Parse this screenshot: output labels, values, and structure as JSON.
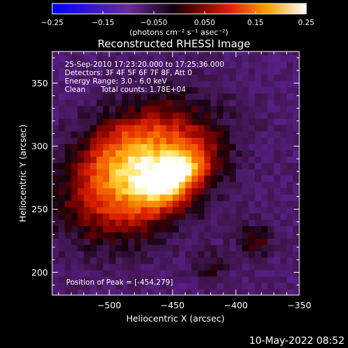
{
  "chart_data": {
    "type": "heatmap",
    "title": "Reconstructed RHESSI Image",
    "xlabel": "Heliocentric X (arcsec)",
    "ylabel": "Heliocentric Y (arcsec)",
    "xlim": [
      -545,
      -350
    ],
    "ylim": [
      182,
      375
    ],
    "xticks": [
      -500,
      -450,
      -400,
      -350
    ],
    "yticks": [
      200,
      250,
      300,
      350
    ],
    "xtick_labels": [
      "−500",
      "−450",
      "−400",
      "−350"
    ],
    "ytick_labels": [
      "200",
      "250",
      "300",
      "350"
    ],
    "colorbar": {
      "range": [
        -0.25,
        0.25
      ],
      "ticks": [
        -0.25,
        -0.15,
        -0.05,
        0.05,
        0.15,
        0.25
      ],
      "tick_labels": [
        "−0.25",
        "−0.15",
        "−0.050",
        "0.050",
        "0.15",
        "0.25"
      ],
      "units": "(photons cm⁻² s⁻¹ asec⁻²)",
      "colors": [
        "#0000ff",
        "#6a2a9c",
        "#000000",
        "#cc0000",
        "#ff8c00",
        "#ffffff"
      ]
    },
    "annotations": {
      "time_range": "25-Sep-2010 17:23:20.000 to 17:25:36.000",
      "detectors": "Detectors: 3F 4F 5F 6F 7F 8F, Att 0",
      "energy_range": "Energy Range: 3.0 - 6.0 keV",
      "method": "Clean",
      "total_counts": "Total counts: 1.78E+04",
      "peak": "Position of Peak = [-454,279]"
    },
    "source": {
      "peak_x": -454,
      "peak_y": 279,
      "peak_value": 0.25,
      "background_value": -0.06
    }
  },
  "footer": {
    "timestamp": "10-May-2022 08:52"
  }
}
